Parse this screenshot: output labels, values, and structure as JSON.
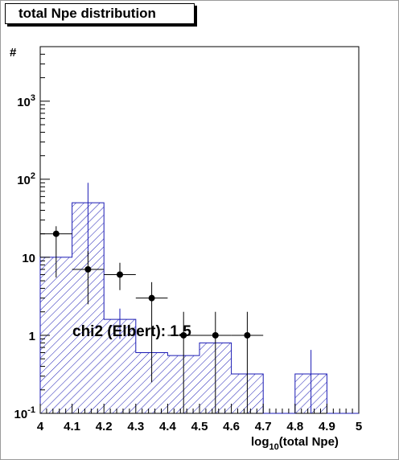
{
  "chart_data": {
    "type": "bar",
    "title": "total Npe distribution",
    "xlabel_main": "log",
    "xlabel_sub": "10",
    "xlabel_rest": "(total Npe)",
    "ylabel": "#",
    "x_ticks": [
      "4",
      "4.1",
      "4.2",
      "4.3",
      "4.4",
      "4.5",
      "4.6",
      "4.7",
      "4.8",
      "4.9",
      "5"
    ],
    "xlim": [
      4,
      5
    ],
    "y_scale": "log",
    "ylim": [
      0.1,
      5000
    ],
    "y_ticks": [
      {
        "value": 0.1,
        "base": "10",
        "exp": "-1"
      },
      {
        "value": 1,
        "base": "1",
        "exp": ""
      },
      {
        "value": 10,
        "base": "10",
        "exp": ""
      },
      {
        "value": 100,
        "base": "10",
        "exp": "2"
      },
      {
        "value": 1000,
        "base": "10",
        "exp": "3"
      }
    ],
    "histogram": {
      "bin_edges": [
        4.0,
        4.1,
        4.2,
        4.3,
        4.4,
        4.5,
        4.6,
        4.7,
        4.8,
        4.9,
        5.0
      ],
      "values": [
        10,
        50,
        1.6,
        0.6,
        0.55,
        0.8,
        0.32,
        0,
        0.32,
        0
      ],
      "errors_low": [
        0,
        10,
        0.9,
        0,
        0,
        0,
        0,
        0,
        0.1,
        0
      ],
      "errors_high": [
        0,
        90,
        2.2,
        0,
        0,
        0,
        0,
        0,
        0.65,
        0
      ],
      "style": "hatched",
      "color": "#1a1ab4"
    },
    "data_points": [
      {
        "x": 4.05,
        "y": 20,
        "y_low": 5.5,
        "y_high": 25,
        "x_err": 0.05
      },
      {
        "x": 4.15,
        "y": 7,
        "y_low": 2.5,
        "y_high": 12,
        "x_err": 0.05
      },
      {
        "x": 4.25,
        "y": 6,
        "y_low": 3.8,
        "y_high": 8.5,
        "x_err": 0.05
      },
      {
        "x": 4.35,
        "y": 3,
        "y_low": 0.25,
        "y_high": 4.8,
        "x_err": 0.05
      },
      {
        "x": 4.45,
        "y": 1,
        "y_low": 0.1,
        "y_high": 2,
        "x_err": 0.05
      },
      {
        "x": 4.55,
        "y": 1,
        "y_low": 0.1,
        "y_high": 2,
        "x_err": 0.05
      },
      {
        "x": 4.65,
        "y": 1,
        "y_low": 0.1,
        "y_high": 2,
        "x_err": 0.05
      }
    ],
    "annotation": "chi2 (Elbert): 1.5",
    "grid": false,
    "colors": {
      "histogram": "#1a1ab4",
      "points": "#000000"
    }
  }
}
